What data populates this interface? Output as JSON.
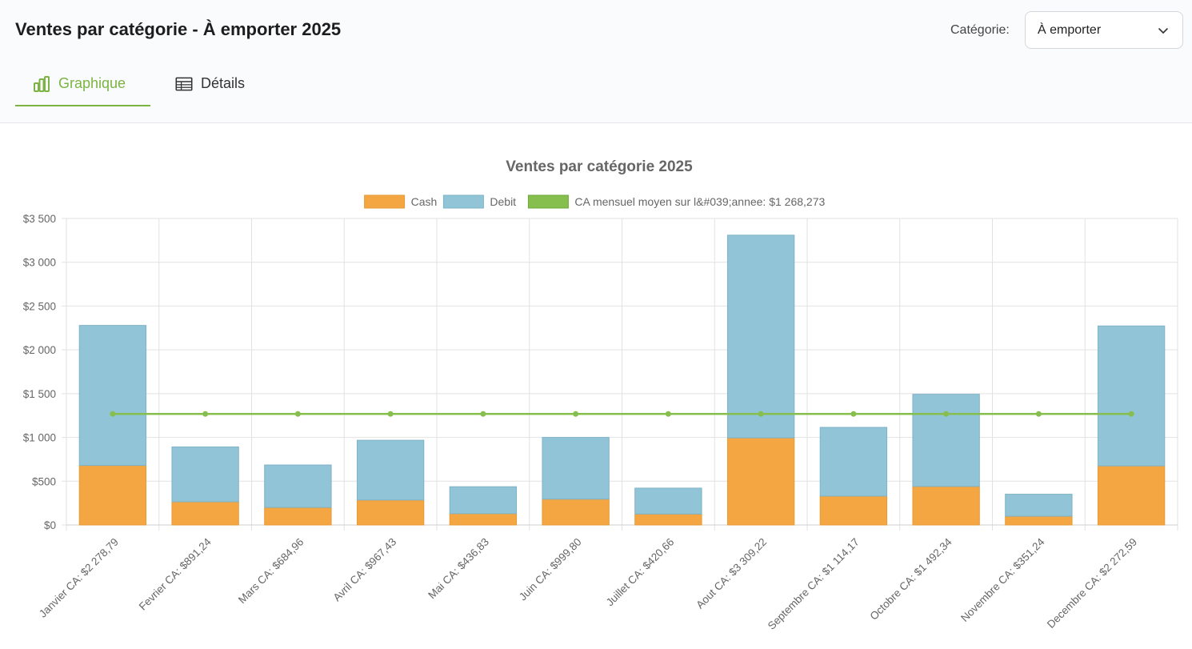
{
  "header": {
    "title": "Ventes par catégorie - À emporter 2025",
    "category_label": "Catégorie:",
    "category_value": "À emporter"
  },
  "tabs": [
    {
      "label": "Graphique",
      "icon": "bar-chart-icon",
      "active": true
    },
    {
      "label": "Détails",
      "icon": "table-icon",
      "active": false
    }
  ],
  "colors": {
    "accent": "#7cb342",
    "cash": "#f4a643",
    "debit": "#92c4d7",
    "average": "#86bf4e"
  },
  "chart_data": {
    "type": "bar",
    "stacked": true,
    "title": "Ventes par catégorie 2025",
    "categories": [
      "Janvier CA: $2 278,79",
      "Fevrier CA: $891,24",
      "Mars CA: $684,96",
      "Avril CA: $967,43",
      "Mai CA: $436,83",
      "Juin CA: $999,80",
      "Juillet CA: $420,66",
      "Aout CA: $3 309,22",
      "Septembre CA: $1 114,17",
      "Octobre CA: $1 492,34",
      "Novembre CA: $351,24",
      "Decembre CA: $2 272,59"
    ],
    "series": [
      {
        "name": "Cash",
        "type": "bar",
        "color": "#f4a643",
        "values": [
          680,
          265,
          200,
          285,
          130,
          295,
          125,
          995,
          330,
          440,
          100,
          675
        ]
      },
      {
        "name": "Debit",
        "type": "bar",
        "color": "#92c4d7",
        "values": [
          1598.79,
          626.24,
          484.96,
          682.43,
          306.83,
          704.8,
          295.66,
          2314.22,
          784.17,
          1052.34,
          251.24,
          1597.59
        ]
      },
      {
        "name": "CA mensuel moyen sur l&#039;annee: $1 268,273",
        "type": "line",
        "color": "#86bf4e",
        "values": [
          1268.273,
          1268.273,
          1268.273,
          1268.273,
          1268.273,
          1268.273,
          1268.273,
          1268.273,
          1268.273,
          1268.273,
          1268.273,
          1268.273
        ]
      }
    ],
    "yticks": [
      "$0",
      "$500",
      "$1 000",
      "$1 500",
      "$2 000",
      "$2 500",
      "$3 000",
      "$3 500"
    ],
    "ylim": [
      0,
      3500
    ],
    "grid": true,
    "legend": "top"
  }
}
